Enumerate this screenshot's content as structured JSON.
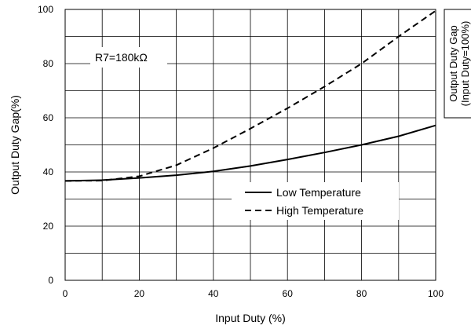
{
  "chart_data": {
    "type": "line",
    "xlabel": "Input Duty (%)",
    "ylabel": "Output Duty Gap(%)",
    "xlim": [
      0,
      100
    ],
    "ylim": [
      0,
      100
    ],
    "x_ticks": [
      "0",
      "20",
      "40",
      "60",
      "80",
      "100"
    ],
    "y_ticks": [
      "0",
      "20",
      "40",
      "60",
      "80",
      "100"
    ],
    "grid": true,
    "annotation": "R7=180kΩ",
    "side_label_line1": "Output Duty Gap",
    "side_label_line2": "(Input Duty=100%)",
    "legend_position": "center-right",
    "series": [
      {
        "name": "Low Temperature",
        "style": "solid",
        "color": "#000000",
        "x": [
          0,
          10,
          20,
          30,
          40,
          50,
          60,
          70,
          80,
          90,
          100
        ],
        "y": [
          36.7,
          37.0,
          37.8,
          38.8,
          40.2,
          42.2,
          44.6,
          47.2,
          50.0,
          53.2,
          57.2
        ]
      },
      {
        "name": "High Temperature",
        "style": "dashed",
        "color": "#000000",
        "x": [
          0,
          10,
          20,
          30,
          40,
          50,
          60,
          70,
          80,
          90,
          100
        ],
        "y": [
          36.7,
          36.8,
          38.4,
          42.5,
          48.8,
          56.0,
          63.5,
          71.5,
          80.0,
          90.0,
          99.5
        ]
      }
    ]
  }
}
